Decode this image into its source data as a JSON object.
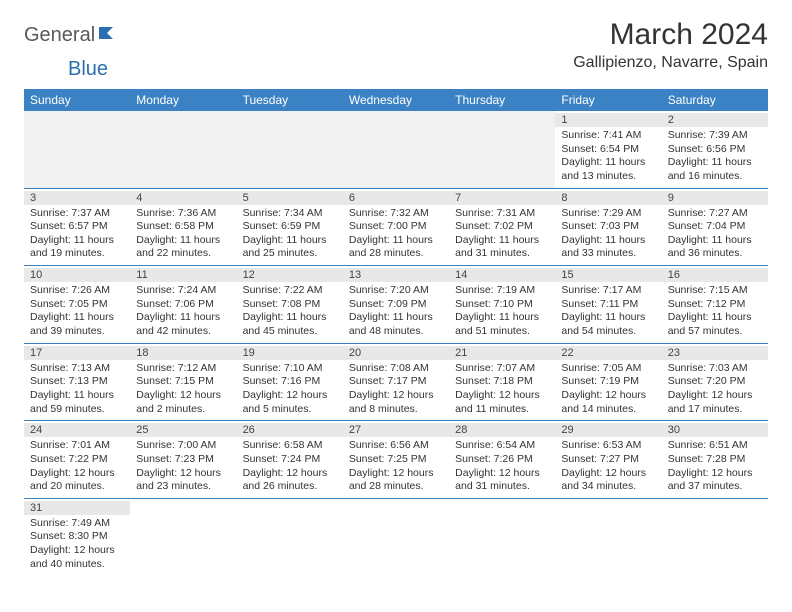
{
  "logo": {
    "part1": "General",
    "part2": "Blue"
  },
  "title": "March 2024",
  "location": "Gallipienzo, Navarre, Spain",
  "colors": {
    "header_bg": "#3b82c4",
    "header_text": "#ffffff",
    "row_divider": "#3b82c4",
    "daynum_bg": "#e8e8e8",
    "blank_bg": "#f2f2f2",
    "body_text": "#333333",
    "logo_gray": "#5a5a5a",
    "logo_blue": "#2b6fb0"
  },
  "daysOfWeek": [
    "Sunday",
    "Monday",
    "Tuesday",
    "Wednesday",
    "Thursday",
    "Friday",
    "Saturday"
  ],
  "weeks": [
    [
      null,
      null,
      null,
      null,
      null,
      {
        "n": "1",
        "sr": "7:41 AM",
        "ss": "6:54 PM",
        "dl": "11 hours and 13 minutes."
      },
      {
        "n": "2",
        "sr": "7:39 AM",
        "ss": "6:56 PM",
        "dl": "11 hours and 16 minutes."
      }
    ],
    [
      {
        "n": "3",
        "sr": "7:37 AM",
        "ss": "6:57 PM",
        "dl": "11 hours and 19 minutes."
      },
      {
        "n": "4",
        "sr": "7:36 AM",
        "ss": "6:58 PM",
        "dl": "11 hours and 22 minutes."
      },
      {
        "n": "5",
        "sr": "7:34 AM",
        "ss": "6:59 PM",
        "dl": "11 hours and 25 minutes."
      },
      {
        "n": "6",
        "sr": "7:32 AM",
        "ss": "7:00 PM",
        "dl": "11 hours and 28 minutes."
      },
      {
        "n": "7",
        "sr": "7:31 AM",
        "ss": "7:02 PM",
        "dl": "11 hours and 31 minutes."
      },
      {
        "n": "8",
        "sr": "7:29 AM",
        "ss": "7:03 PM",
        "dl": "11 hours and 33 minutes."
      },
      {
        "n": "9",
        "sr": "7:27 AM",
        "ss": "7:04 PM",
        "dl": "11 hours and 36 minutes."
      }
    ],
    [
      {
        "n": "10",
        "sr": "7:26 AM",
        "ss": "7:05 PM",
        "dl": "11 hours and 39 minutes."
      },
      {
        "n": "11",
        "sr": "7:24 AM",
        "ss": "7:06 PM",
        "dl": "11 hours and 42 minutes."
      },
      {
        "n": "12",
        "sr": "7:22 AM",
        "ss": "7:08 PM",
        "dl": "11 hours and 45 minutes."
      },
      {
        "n": "13",
        "sr": "7:20 AM",
        "ss": "7:09 PM",
        "dl": "11 hours and 48 minutes."
      },
      {
        "n": "14",
        "sr": "7:19 AM",
        "ss": "7:10 PM",
        "dl": "11 hours and 51 minutes."
      },
      {
        "n": "15",
        "sr": "7:17 AM",
        "ss": "7:11 PM",
        "dl": "11 hours and 54 minutes."
      },
      {
        "n": "16",
        "sr": "7:15 AM",
        "ss": "7:12 PM",
        "dl": "11 hours and 57 minutes."
      }
    ],
    [
      {
        "n": "17",
        "sr": "7:13 AM",
        "ss": "7:13 PM",
        "dl": "11 hours and 59 minutes."
      },
      {
        "n": "18",
        "sr": "7:12 AM",
        "ss": "7:15 PM",
        "dl": "12 hours and 2 minutes."
      },
      {
        "n": "19",
        "sr": "7:10 AM",
        "ss": "7:16 PM",
        "dl": "12 hours and 5 minutes."
      },
      {
        "n": "20",
        "sr": "7:08 AM",
        "ss": "7:17 PM",
        "dl": "12 hours and 8 minutes."
      },
      {
        "n": "21",
        "sr": "7:07 AM",
        "ss": "7:18 PM",
        "dl": "12 hours and 11 minutes."
      },
      {
        "n": "22",
        "sr": "7:05 AM",
        "ss": "7:19 PM",
        "dl": "12 hours and 14 minutes."
      },
      {
        "n": "23",
        "sr": "7:03 AM",
        "ss": "7:20 PM",
        "dl": "12 hours and 17 minutes."
      }
    ],
    [
      {
        "n": "24",
        "sr": "7:01 AM",
        "ss": "7:22 PM",
        "dl": "12 hours and 20 minutes."
      },
      {
        "n": "25",
        "sr": "7:00 AM",
        "ss": "7:23 PM",
        "dl": "12 hours and 23 minutes."
      },
      {
        "n": "26",
        "sr": "6:58 AM",
        "ss": "7:24 PM",
        "dl": "12 hours and 26 minutes."
      },
      {
        "n": "27",
        "sr": "6:56 AM",
        "ss": "7:25 PM",
        "dl": "12 hours and 28 minutes."
      },
      {
        "n": "28",
        "sr": "6:54 AM",
        "ss": "7:26 PM",
        "dl": "12 hours and 31 minutes."
      },
      {
        "n": "29",
        "sr": "6:53 AM",
        "ss": "7:27 PM",
        "dl": "12 hours and 34 minutes."
      },
      {
        "n": "30",
        "sr": "6:51 AM",
        "ss": "7:28 PM",
        "dl": "12 hours and 37 minutes."
      }
    ],
    [
      {
        "n": "31",
        "sr": "7:49 AM",
        "ss": "8:30 PM",
        "dl": "12 hours and 40 minutes."
      },
      null,
      null,
      null,
      null,
      null,
      null
    ]
  ],
  "labels": {
    "sunrise": "Sunrise:",
    "sunset": "Sunset:",
    "daylight": "Daylight:"
  }
}
